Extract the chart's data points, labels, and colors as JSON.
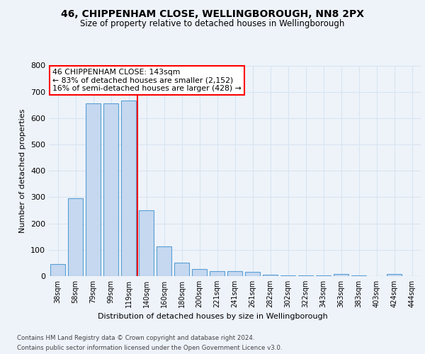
{
  "title1": "46, CHIPPENHAM CLOSE, WELLINGBOROUGH, NN8 2PX",
  "title2": "Size of property relative to detached houses in Wellingborough",
  "xlabel": "Distribution of detached houses by size in Wellingborough",
  "ylabel": "Number of detached properties",
  "categories": [
    "38sqm",
    "58sqm",
    "79sqm",
    "99sqm",
    "119sqm",
    "140sqm",
    "160sqm",
    "180sqm",
    "200sqm",
    "221sqm",
    "241sqm",
    "261sqm",
    "282sqm",
    "302sqm",
    "322sqm",
    "343sqm",
    "363sqm",
    "383sqm",
    "403sqm",
    "424sqm",
    "444sqm"
  ],
  "values": [
    47,
    295,
    655,
    655,
    668,
    250,
    113,
    50,
    27,
    18,
    18,
    15,
    5,
    3,
    2,
    2,
    8,
    3,
    1,
    9,
    0
  ],
  "bar_color": "#c5d8f0",
  "bar_edge_color": "#5a9fd4",
  "red_line_x": 4.5,
  "annotation_text": "46 CHIPPENHAM CLOSE: 143sqm\n← 83% of detached houses are smaller (2,152)\n16% of semi-detached houses are larger (428) →",
  "ylim": [
    0,
    800
  ],
  "yticks": [
    0,
    100,
    200,
    300,
    400,
    500,
    600,
    700,
    800
  ],
  "footer1": "Contains HM Land Registry data © Crown copyright and database right 2024.",
  "footer2": "Contains public sector information licensed under the Open Government Licence v3.0.",
  "background_color": "#eef3fa",
  "grid_color": "#d8e4f0"
}
